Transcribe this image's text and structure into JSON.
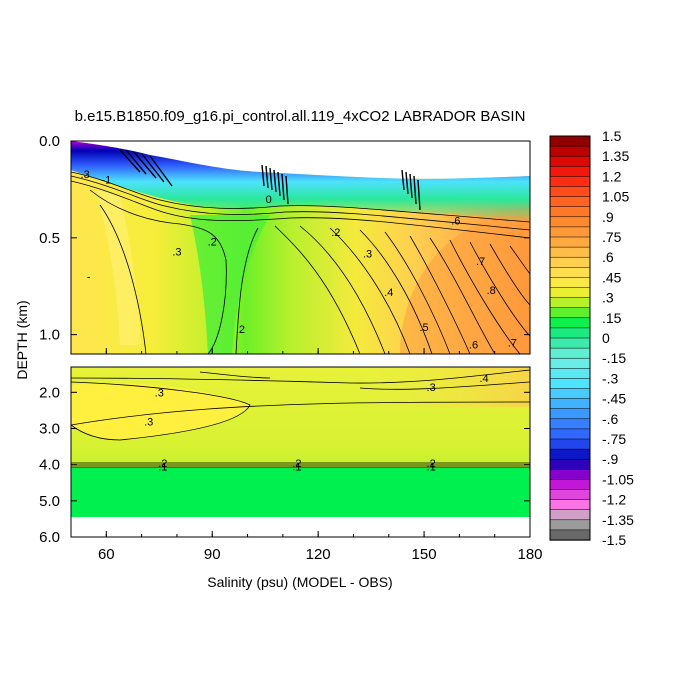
{
  "chart_data": {
    "type": "contour",
    "title": "b.e15.B1850.f09_g16.pi_control.all.119_4xCO2 LABRADOR BASIN",
    "xlabel": "Salinity (psu) (MODEL - OBS)",
    "ylabel": "DEPTH (km)",
    "xlim": [
      50,
      180
    ],
    "x_ticks": [
      "60",
      "90",
      "120",
      "150",
      "180"
    ],
    "panels": [
      {
        "name": "upper",
        "ylim": [
          0.0,
          1.1
        ],
        "y_ticks": [
          "0.0",
          "0.5",
          "1.0"
        ],
        "contour_labels": [
          {
            "text": ".3",
            "x": 54,
            "y": 0.17
          },
          {
            "text": "-1",
            "x": 60,
            "y": 0.2
          },
          {
            "text": "0",
            "x": 106,
            "y": 0.3
          },
          {
            "text": ".2",
            "x": 90,
            "y": 0.52
          },
          {
            "text": ".3",
            "x": 80,
            "y": 0.57
          },
          {
            "text": "-",
            "x": 55,
            "y": 0.7
          },
          {
            "text": ".2",
            "x": 125,
            "y": 0.47
          },
          {
            "text": ".3",
            "x": 134,
            "y": 0.58
          },
          {
            "text": ".4",
            "x": 140,
            "y": 0.78
          },
          {
            "text": ".5",
            "x": 150,
            "y": 0.96
          },
          {
            "text": ".6",
            "x": 164,
            "y": 1.05
          },
          {
            "text": ".7",
            "x": 175,
            "y": 1.04
          },
          {
            "text": ".6",
            "x": 159,
            "y": 0.41
          },
          {
            "text": ".7",
            "x": 166,
            "y": 0.62
          },
          {
            "text": ".8",
            "x": 169,
            "y": 0.77
          },
          {
            "text": ".2",
            "x": 98,
            "y": 0.97
          }
        ]
      },
      {
        "name": "lower",
        "ylim": [
          1.3,
          6.0
        ],
        "y_ticks": [
          "2.0",
          "3.0",
          "4.0",
          "5.0",
          "6.0"
        ],
        "contour_labels": [
          {
            "text": ".3",
            "x": 75,
            "y": 2.0
          },
          {
            "text": ".3",
            "x": 72,
            "y": 2.8
          },
          {
            "text": ".3",
            "x": 152,
            "y": 1.85
          },
          {
            "text": ".4",
            "x": 167,
            "y": 1.6
          },
          {
            "text": ".2",
            "x": 76,
            "y": 3.95
          },
          {
            "text": ".1",
            "x": 76,
            "y": 4.05
          },
          {
            "text": ".2",
            "x": 114,
            "y": 3.95
          },
          {
            "text": ".1",
            "x": 114,
            "y": 4.05
          },
          {
            "text": ".2",
            "x": 152,
            "y": 3.95
          },
          {
            "text": ".1",
            "x": 152,
            "y": 4.05
          }
        ]
      }
    ],
    "colorbar": {
      "labels": [
        "1.5",
        "1.35",
        "1.2",
        "1.05",
        ".9",
        ".75",
        ".6",
        ".45",
        ".3",
        ".15",
        "0",
        "-.15",
        "-.3",
        "-.45",
        "-.6",
        "-.75",
        "-.9",
        "-1.05",
        "-1.2",
        "-1.35",
        "-1.5"
      ],
      "range": [
        -1.5,
        1.5
      ],
      "levels": 40,
      "stops": [
        {
          "v": -1.5,
          "c": "#505050"
        },
        {
          "v": -1.35,
          "c": "#b4b4b4"
        },
        {
          "v": -1.25,
          "c": "#ff7ce6"
        },
        {
          "v": -1.05,
          "c": "#b400d2"
        },
        {
          "v": -0.9,
          "c": "#0000b4"
        },
        {
          "v": -0.75,
          "c": "#2f5cff"
        },
        {
          "v": -0.55,
          "c": "#3c9cff"
        },
        {
          "v": -0.35,
          "c": "#4de2ff"
        },
        {
          "v": -0.15,
          "c": "#70f0e0"
        },
        {
          "v": 0.0,
          "c": "#2be89a"
        },
        {
          "v": 0.1,
          "c": "#00f050"
        },
        {
          "v": 0.2,
          "c": "#6cf028"
        },
        {
          "v": 0.3,
          "c": "#e4f22a"
        },
        {
          "v": 0.45,
          "c": "#ffe650"
        },
        {
          "v": 0.6,
          "c": "#ffc84e"
        },
        {
          "v": 0.75,
          "c": "#ffa03c"
        },
        {
          "v": 0.9,
          "c": "#ff8228"
        },
        {
          "v": 1.05,
          "c": "#ff5a1e"
        },
        {
          "v": 1.2,
          "c": "#ff2010"
        },
        {
          "v": 1.35,
          "c": "#d00000"
        },
        {
          "v": 1.5,
          "c": "#7a0000"
        }
      ]
    }
  }
}
